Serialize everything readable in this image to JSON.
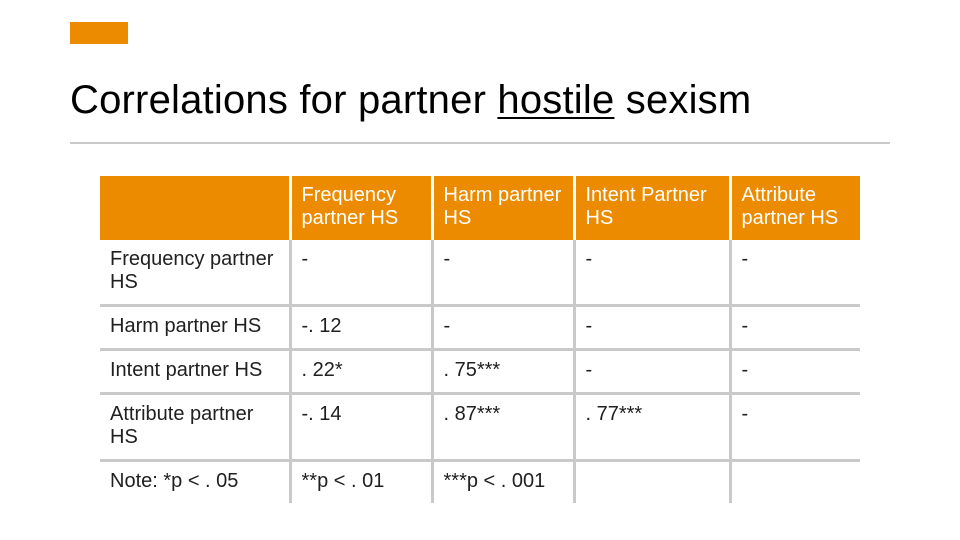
{
  "accent_color": "#ed8b00",
  "title_pre": "Correlations for partner ",
  "title_underlined": "hostile",
  "title_post": " sexism",
  "table": {
    "headers": [
      "",
      "Frequency partner HS",
      "Harm partner HS",
      "Intent Partner HS",
      "Attribute partner HS"
    ],
    "rows": [
      [
        "Frequency partner HS",
        "-",
        "-",
        "-",
        "-"
      ],
      [
        "Harm partner HS",
        "-. 12",
        "-",
        "-",
        "-"
      ],
      [
        "Intent partner HS",
        ". 22*",
        ". 75***",
        "-",
        "-"
      ],
      [
        "Attribute partner HS",
        "-. 14",
        ". 87***",
        ". 77***",
        "-"
      ],
      [
        "Note: *p < . 05",
        "**p < . 01",
        "***p  < . 001",
        "",
        ""
      ]
    ]
  }
}
